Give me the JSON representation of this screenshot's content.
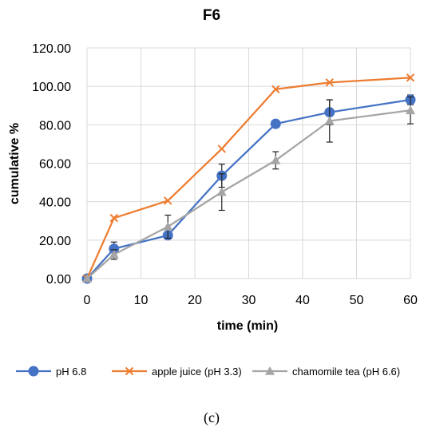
{
  "caption": "(c)",
  "chart_data": {
    "type": "line",
    "title": "F6",
    "xlabel": "time (min)",
    "ylabel": "cumulative %",
    "xlim": [
      0,
      60
    ],
    "ylim": [
      0,
      120
    ],
    "xticks": [
      0,
      10,
      20,
      30,
      40,
      50,
      60
    ],
    "xtick_labels": [
      "0",
      "10",
      "20",
      "30",
      "40",
      "50",
      "60"
    ],
    "yticks": [
      0,
      20,
      40,
      60,
      80,
      100,
      120
    ],
    "ytick_labels": [
      "0.00",
      "20.00",
      "40.00",
      "60.00",
      "80.00",
      "100.00",
      "120.00"
    ],
    "grid": true,
    "legend_position": "bottom",
    "x": [
      0,
      5,
      15,
      25,
      35,
      45,
      60
    ],
    "series": [
      {
        "name": "pH 6.8",
        "color": "#4472C4",
        "marker": "circle",
        "values": [
          0,
          15.5,
          22.5,
          53.5,
          80.5,
          86.5,
          93.0
        ],
        "error": [
          0,
          3.5,
          1.5,
          6.0,
          0,
          6.5,
          2.5
        ]
      },
      {
        "name": "apple juice (pH 3.3)",
        "color": "#ED7D31",
        "marker": "x",
        "values": [
          0,
          31.5,
          40.5,
          67.5,
          98.5,
          102.0,
          104.5
        ],
        "error": [
          0,
          0,
          0,
          0,
          0,
          0,
          0
        ]
      },
      {
        "name": "chamomile tea (pH 6.6)",
        "color": "#A5A5A5",
        "marker": "triangle",
        "values": [
          0,
          12.5,
          27.0,
          45.0,
          61.5,
          82.0,
          87.5
        ],
        "error": [
          0,
          2.5,
          6.0,
          9.5,
          4.5,
          11.0,
          7.0
        ]
      }
    ]
  }
}
